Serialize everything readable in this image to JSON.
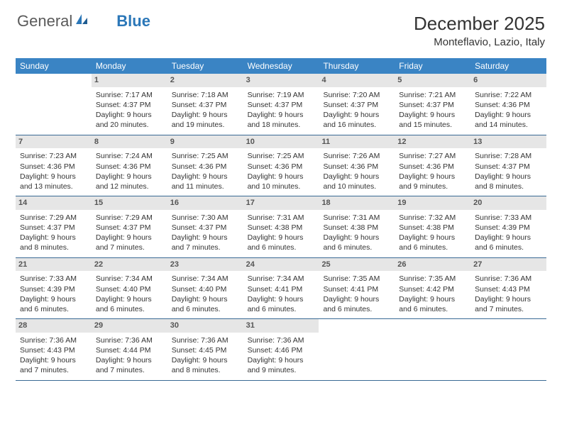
{
  "logo": {
    "text1": "General",
    "text2": "Blue"
  },
  "title": "December 2025",
  "location": "Monteflavio, Lazio, Italy",
  "colors": {
    "header_bg": "#3a84c4",
    "header_text": "#ffffff",
    "daynum_bg": "#e6e6e6",
    "rule": "#3a6a95",
    "logo_gray": "#5a5a5a",
    "logo_blue": "#2b77b8"
  },
  "daysOfWeek": [
    "Sunday",
    "Monday",
    "Tuesday",
    "Wednesday",
    "Thursday",
    "Friday",
    "Saturday"
  ],
  "weeks": [
    [
      null,
      {
        "n": "1",
        "sr": "Sunrise: 7:17 AM",
        "ss": "Sunset: 4:37 PM",
        "dl": "Daylight: 9 hours and 20 minutes."
      },
      {
        "n": "2",
        "sr": "Sunrise: 7:18 AM",
        "ss": "Sunset: 4:37 PM",
        "dl": "Daylight: 9 hours and 19 minutes."
      },
      {
        "n": "3",
        "sr": "Sunrise: 7:19 AM",
        "ss": "Sunset: 4:37 PM",
        "dl": "Daylight: 9 hours and 18 minutes."
      },
      {
        "n": "4",
        "sr": "Sunrise: 7:20 AM",
        "ss": "Sunset: 4:37 PM",
        "dl": "Daylight: 9 hours and 16 minutes."
      },
      {
        "n": "5",
        "sr": "Sunrise: 7:21 AM",
        "ss": "Sunset: 4:37 PM",
        "dl": "Daylight: 9 hours and 15 minutes."
      },
      {
        "n": "6",
        "sr": "Sunrise: 7:22 AM",
        "ss": "Sunset: 4:36 PM",
        "dl": "Daylight: 9 hours and 14 minutes."
      }
    ],
    [
      {
        "n": "7",
        "sr": "Sunrise: 7:23 AM",
        "ss": "Sunset: 4:36 PM",
        "dl": "Daylight: 9 hours and 13 minutes."
      },
      {
        "n": "8",
        "sr": "Sunrise: 7:24 AM",
        "ss": "Sunset: 4:36 PM",
        "dl": "Daylight: 9 hours and 12 minutes."
      },
      {
        "n": "9",
        "sr": "Sunrise: 7:25 AM",
        "ss": "Sunset: 4:36 PM",
        "dl": "Daylight: 9 hours and 11 minutes."
      },
      {
        "n": "10",
        "sr": "Sunrise: 7:25 AM",
        "ss": "Sunset: 4:36 PM",
        "dl": "Daylight: 9 hours and 10 minutes."
      },
      {
        "n": "11",
        "sr": "Sunrise: 7:26 AM",
        "ss": "Sunset: 4:36 PM",
        "dl": "Daylight: 9 hours and 10 minutes."
      },
      {
        "n": "12",
        "sr": "Sunrise: 7:27 AM",
        "ss": "Sunset: 4:36 PM",
        "dl": "Daylight: 9 hours and 9 minutes."
      },
      {
        "n": "13",
        "sr": "Sunrise: 7:28 AM",
        "ss": "Sunset: 4:37 PM",
        "dl": "Daylight: 9 hours and 8 minutes."
      }
    ],
    [
      {
        "n": "14",
        "sr": "Sunrise: 7:29 AM",
        "ss": "Sunset: 4:37 PM",
        "dl": "Daylight: 9 hours and 8 minutes."
      },
      {
        "n": "15",
        "sr": "Sunrise: 7:29 AM",
        "ss": "Sunset: 4:37 PM",
        "dl": "Daylight: 9 hours and 7 minutes."
      },
      {
        "n": "16",
        "sr": "Sunrise: 7:30 AM",
        "ss": "Sunset: 4:37 PM",
        "dl": "Daylight: 9 hours and 7 minutes."
      },
      {
        "n": "17",
        "sr": "Sunrise: 7:31 AM",
        "ss": "Sunset: 4:38 PM",
        "dl": "Daylight: 9 hours and 6 minutes."
      },
      {
        "n": "18",
        "sr": "Sunrise: 7:31 AM",
        "ss": "Sunset: 4:38 PM",
        "dl": "Daylight: 9 hours and 6 minutes."
      },
      {
        "n": "19",
        "sr": "Sunrise: 7:32 AM",
        "ss": "Sunset: 4:38 PM",
        "dl": "Daylight: 9 hours and 6 minutes."
      },
      {
        "n": "20",
        "sr": "Sunrise: 7:33 AM",
        "ss": "Sunset: 4:39 PM",
        "dl": "Daylight: 9 hours and 6 minutes."
      }
    ],
    [
      {
        "n": "21",
        "sr": "Sunrise: 7:33 AM",
        "ss": "Sunset: 4:39 PM",
        "dl": "Daylight: 9 hours and 6 minutes."
      },
      {
        "n": "22",
        "sr": "Sunrise: 7:34 AM",
        "ss": "Sunset: 4:40 PM",
        "dl": "Daylight: 9 hours and 6 minutes."
      },
      {
        "n": "23",
        "sr": "Sunrise: 7:34 AM",
        "ss": "Sunset: 4:40 PM",
        "dl": "Daylight: 9 hours and 6 minutes."
      },
      {
        "n": "24",
        "sr": "Sunrise: 7:34 AM",
        "ss": "Sunset: 4:41 PM",
        "dl": "Daylight: 9 hours and 6 minutes."
      },
      {
        "n": "25",
        "sr": "Sunrise: 7:35 AM",
        "ss": "Sunset: 4:41 PM",
        "dl": "Daylight: 9 hours and 6 minutes."
      },
      {
        "n": "26",
        "sr": "Sunrise: 7:35 AM",
        "ss": "Sunset: 4:42 PM",
        "dl": "Daylight: 9 hours and 6 minutes."
      },
      {
        "n": "27",
        "sr": "Sunrise: 7:36 AM",
        "ss": "Sunset: 4:43 PM",
        "dl": "Daylight: 9 hours and 7 minutes."
      }
    ],
    [
      {
        "n": "28",
        "sr": "Sunrise: 7:36 AM",
        "ss": "Sunset: 4:43 PM",
        "dl": "Daylight: 9 hours and 7 minutes."
      },
      {
        "n": "29",
        "sr": "Sunrise: 7:36 AM",
        "ss": "Sunset: 4:44 PM",
        "dl": "Daylight: 9 hours and 7 minutes."
      },
      {
        "n": "30",
        "sr": "Sunrise: 7:36 AM",
        "ss": "Sunset: 4:45 PM",
        "dl": "Daylight: 9 hours and 8 minutes."
      },
      {
        "n": "31",
        "sr": "Sunrise: 7:36 AM",
        "ss": "Sunset: 4:46 PM",
        "dl": "Daylight: 9 hours and 9 minutes."
      },
      null,
      null,
      null
    ]
  ]
}
